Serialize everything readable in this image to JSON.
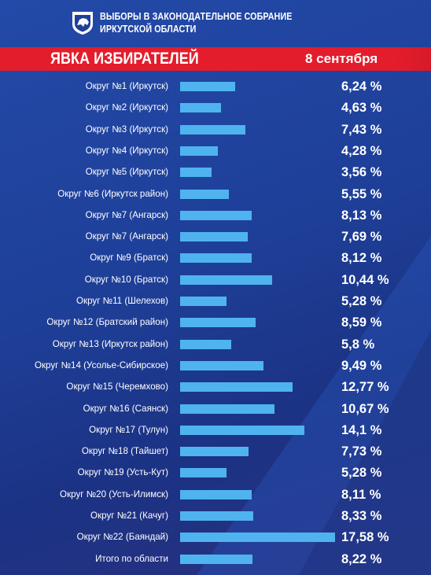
{
  "header": {
    "org_line1": "ВЫБОРЫ В ЗАКОНОДАТЕЛЬНОЕ СОБРАНИЕ",
    "org_line2": "ИРКУТСКОЙ ОБЛАСТИ",
    "logo_icon": "irkutsk-coat-of-arms-icon"
  },
  "ribbon": {
    "title": "ЯВКА ИЗБИРАТЕЛЕЙ",
    "date": "8 сентября"
  },
  "colors": {
    "background": "#1e3f98",
    "ribbon": "#e31d2b",
    "bar": "#4fb3ef",
    "text": "#ffffff"
  },
  "chart_data": {
    "type": "bar",
    "orientation": "horizontal",
    "categories": [
      "Округ №1 (Иркутск)",
      "Округ №2 (Иркутск)",
      "Округ №3 (Иркутск)",
      "Округ №4 (Иркутск)",
      "Округ №5 (Иркутск)",
      "Округ №6 (Иркутск район)",
      "Округ №7 (Ангарск)",
      "Округ №7 (Ангарск)",
      "Округ №9 (Братск)",
      "Округ №10 (Братск)",
      "Округ №11 (Шелехов)",
      "Округ №12 (Братский район)",
      "Округ №13 (Иркутск район)",
      "Округ №14 (Усолье-Сибирское)",
      "Округ №15 (Черемхово)",
      "Округ №16 (Саянск)",
      "Округ №17 (Тулун)",
      "Округ №18 (Тайшет)",
      "Округ №19 (Усть-Кут)",
      "Округ №20 (Усть-Илимск)",
      "Округ №21 (Качуг)",
      "Округ №22 (Баяндай)",
      "Итого по области"
    ],
    "values": [
      6.24,
      4.63,
      7.43,
      4.28,
      3.56,
      5.55,
      8.13,
      7.69,
      8.12,
      10.44,
      5.28,
      8.59,
      5.8,
      9.49,
      12.77,
      10.67,
      14.1,
      7.73,
      5.28,
      8.11,
      8.33,
      17.58,
      8.22
    ],
    "value_labels": [
      "6,24 %",
      "4,63 %",
      "7,43 %",
      "4,28 %",
      "3,56 %",
      "5,55 %",
      "8,13 %",
      "7,69 %",
      "8,12 %",
      "10,44 %",
      "5,28 %",
      "8,59 %",
      "5,8 %",
      "9,49 %",
      "12,77 %",
      "10,67 %",
      "14,1 %",
      "7,73 %",
      "5,28 %",
      "8,11 %",
      "8,33 %",
      "17,58 %",
      "8,22 %"
    ],
    "xlim": [
      0,
      17.58
    ],
    "grid": false,
    "legend": "none"
  }
}
